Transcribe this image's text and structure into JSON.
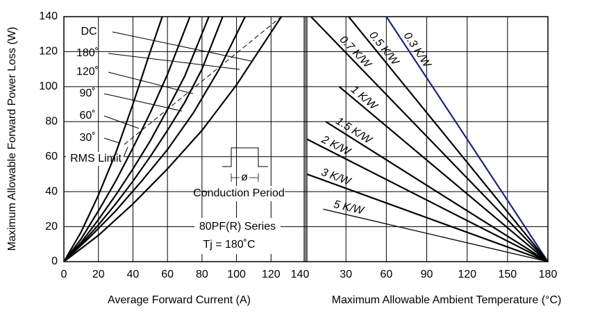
{
  "chart_data": [
    {
      "type": "line",
      "xlabel": "Average Forward Current (A)",
      "ylabel": "Maximum Allowable Forward Power Loss (W)",
      "xlim": [
        0,
        140
      ],
      "xticks": [
        0,
        20,
        40,
        60,
        80,
        100,
        120,
        140
      ],
      "ylim": [
        0,
        140
      ],
      "yticks": [
        0,
        20,
        40,
        60,
        80,
        100,
        120,
        140
      ],
      "grid": true,
      "series": [
        {
          "name": "DC",
          "color": "#000000",
          "x": [
            0,
            20,
            40,
            60,
            80,
            100,
            126
          ],
          "values": [
            0,
            15,
            33,
            53,
            75,
            101,
            140
          ]
        },
        {
          "name": "180˚",
          "color": "#000000",
          "x": [
            0,
            15,
            30,
            45,
            60,
            75,
            90,
            105
          ],
          "values": [
            0,
            14,
            29,
            46,
            64,
            85,
            110,
            140
          ]
        },
        {
          "name": "120˚",
          "color": "#000000",
          "x": [
            0,
            10,
            20,
            30,
            40,
            50,
            60,
            70,
            80,
            92
          ],
          "values": [
            0,
            10,
            21,
            33,
            46,
            60,
            75,
            91,
            110,
            140
          ]
        },
        {
          "name": "90˚",
          "color": "#000000",
          "x": [
            0,
            10,
            20,
            30,
            40,
            50,
            60,
            70,
            84
          ],
          "values": [
            0,
            11,
            24,
            38,
            53,
            69,
            87,
            106,
            140
          ]
        },
        {
          "name": "60˚",
          "color": "#000000",
          "x": [
            0,
            10,
            20,
            30,
            40,
            50,
            60,
            73
          ],
          "values": [
            0,
            13,
            29,
            46,
            65,
            85,
            107,
            140
          ]
        },
        {
          "name": "30˚",
          "color": "#000000",
          "x": [
            0,
            10,
            20,
            30,
            40,
            50,
            57
          ],
          "values": [
            0,
            17,
            38,
            62,
            90,
            120,
            140
          ]
        },
        {
          "name": "RMS Limit",
          "color": "#000000",
          "style": "dashed",
          "x": [
            35,
            126
          ],
          "values": [
            67,
            140
          ]
        }
      ],
      "annotations": [
        "Conduction Period",
        "ø",
        "80PF(R) Series",
        "Tj = 180˚C"
      ]
    },
    {
      "type": "line",
      "xlabel": "Maximum Allowable Ambient Temperature (°C)",
      "xlim": [
        0,
        180
      ],
      "xticks": [
        30,
        60,
        90,
        120,
        150,
        180
      ],
      "ylim": [
        0,
        140
      ],
      "grid": true,
      "series": [
        {
          "name": "0.3 K/W",
          "color": "#1a237e",
          "x": [
            60,
            180
          ],
          "values": [
            140,
            0
          ]
        },
        {
          "name": "0.5 K/W",
          "color": "#000000",
          "x": [
            32,
            180
          ],
          "values": [
            140,
            0
          ]
        },
        {
          "name": "0.7 K/W",
          "color": "#000000",
          "x": [
            4,
            180
          ],
          "values": [
            140,
            0
          ]
        },
        {
          "name": "1 K/W",
          "color": "#000000",
          "x": [
            25,
            180
          ],
          "values": [
            100,
            0
          ]
        },
        {
          "name": "1.5 K/W",
          "color": "#000000",
          "x": [
            15,
            180
          ],
          "values": [
            80,
            0
          ]
        },
        {
          "name": "2 K/W",
          "color": "#000000",
          "x": [
            1,
            180
          ],
          "values": [
            70,
            0
          ]
        },
        {
          "name": "3 K/W",
          "color": "#000000",
          "x": [
            1,
            180
          ],
          "values": [
            50,
            0
          ]
        },
        {
          "name": "5 K/W",
          "color": "#000000",
          "x": [
            13,
            180
          ],
          "values": [
            30,
            0
          ]
        }
      ]
    }
  ]
}
